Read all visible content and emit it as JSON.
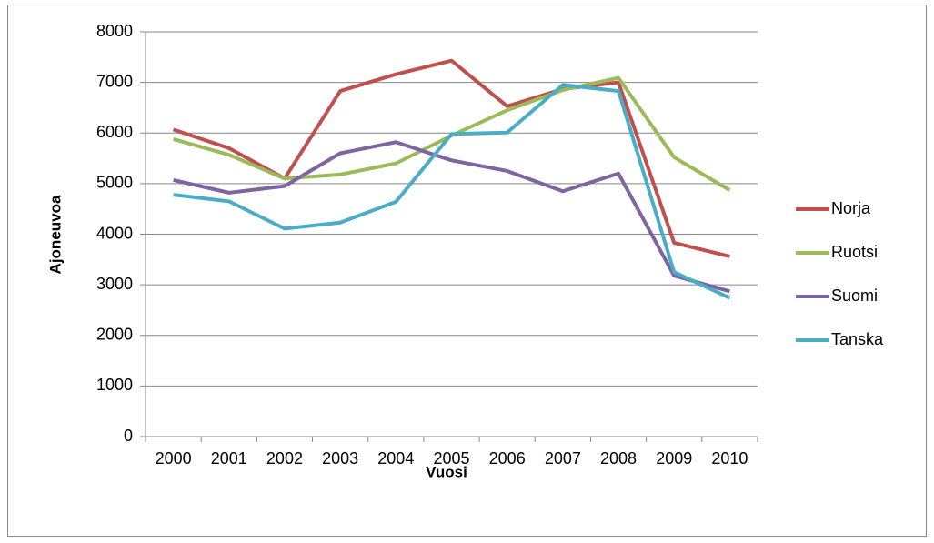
{
  "chart_data": {
    "type": "line",
    "x_label": "Vuosi",
    "y_label": "Ajoneuvoa",
    "categories": [
      "2000",
      "2001",
      "2002",
      "2003",
      "2004",
      "2005",
      "2006",
      "2007",
      "2008",
      "2009",
      "2010"
    ],
    "series": [
      {
        "name": "Norja",
        "color": "#c0504d",
        "values": [
          6070,
          5700,
          5100,
          6830,
          7160,
          7430,
          6530,
          6870,
          7000,
          3830,
          3560
        ]
      },
      {
        "name": "Ruotsi",
        "color": "#9bbb59",
        "values": [
          5880,
          5570,
          5100,
          5180,
          5400,
          5950,
          6450,
          6850,
          7090,
          5520,
          4870
        ]
      },
      {
        "name": "Suomi",
        "color": "#8064a2",
        "values": [
          5070,
          4820,
          4950,
          5600,
          5820,
          5460,
          5250,
          4850,
          5200,
          3180,
          2870
        ]
      },
      {
        "name": "Tanska",
        "color": "#4bacc6",
        "values": [
          4780,
          4650,
          4110,
          4230,
          4640,
          5980,
          6010,
          6950,
          6830,
          3250,
          2740
        ]
      }
    ],
    "ylim": [
      0,
      8000
    ],
    "yticks": [
      0,
      1000,
      2000,
      3000,
      4000,
      5000,
      6000,
      7000,
      8000
    ],
    "grid": true,
    "legend": "right"
  }
}
